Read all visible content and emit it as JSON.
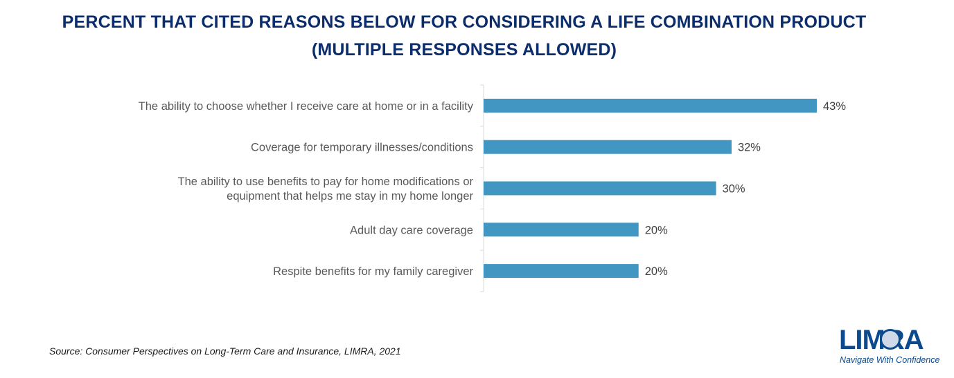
{
  "title": {
    "line1": "PERCENT THAT CITED REASONS BELOW FOR CONSIDERING A LIFE COMBINATION PRODUCT",
    "line2": "(MULTIPLE RESPONSES ALLOWED)"
  },
  "chart_data": {
    "type": "bar",
    "orientation": "horizontal",
    "categories": [
      [
        "The ability to choose whether I receive care at home or in a facility"
      ],
      [
        "Coverage for temporary illnesses/conditions"
      ],
      [
        "The ability to use benefits to pay for home modifications or",
        "equipment that helps me stay in my home longer"
      ],
      [
        "Adult day care coverage"
      ],
      [
        "Respite benefits for my family caregiver"
      ]
    ],
    "values": [
      43,
      32,
      30,
      20,
      20
    ],
    "value_labels": [
      "43%",
      "32%",
      "30%",
      "20%",
      "20%"
    ],
    "xlim": [
      0,
      43
    ],
    "grid": false,
    "bar_color": "#4196c2"
  },
  "source": "Source: Consumer Perspectives on Long-Term Care and Insurance, LIMRA, 2021",
  "logo": {
    "word": "LIMRA",
    "tagline": "Navigate With Confidence",
    "color": "#0b4a8c"
  }
}
